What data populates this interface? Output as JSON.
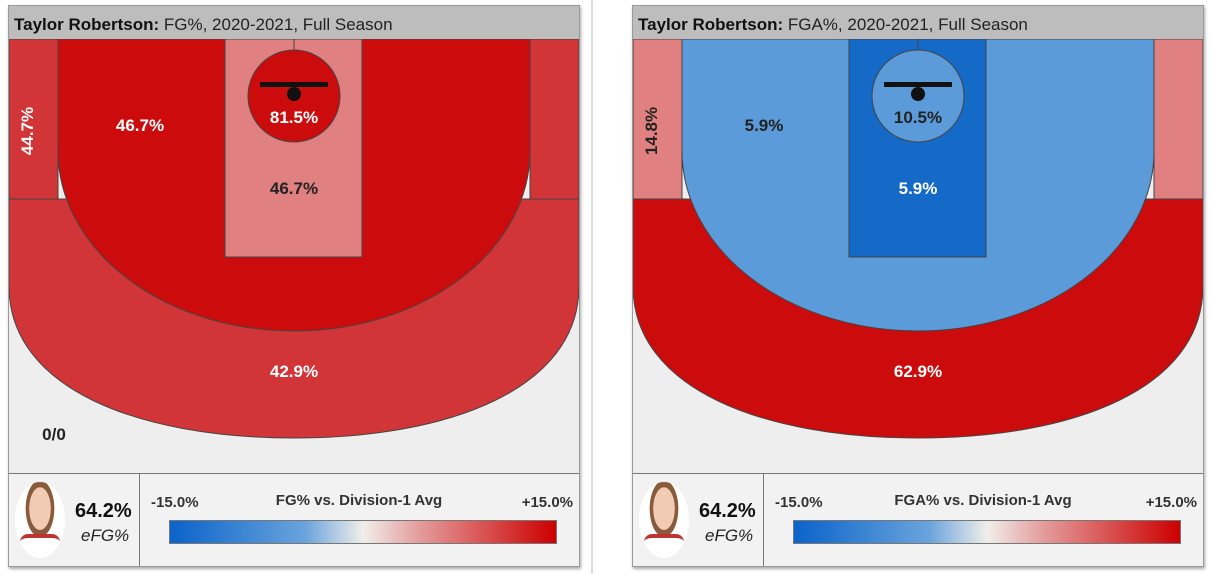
{
  "panels": [
    {
      "player": "Taylor Robertson:",
      "subtitle": " FG%, 2020-2021, Full Season",
      "zones": {
        "corner_left": "44.7%",
        "midrange": "46.7%",
        "restricted": "81.5%",
        "paint": "46.7%",
        "three_above_break": "42.9%",
        "backcourt": "0/0"
      },
      "colors": {
        "corner": "#d13538",
        "midrange": "#cc0c0c",
        "paint": "#e08080",
        "restricted": "#cc0c0c",
        "three": "#d13538",
        "backcourt": "#eeeeee"
      },
      "efg_value": "64.2%",
      "efg_label": "eFG%",
      "legend_min": "-15.0%",
      "legend_title": "FG% vs. Division-1 Avg",
      "legend_max": "+15.0%"
    },
    {
      "player": "Taylor Robertson:",
      "subtitle": " FGA%, 2020-2021, Full Season",
      "zones": {
        "corner_left": "14.8%",
        "midrange": "5.9%",
        "restricted": "10.5%",
        "paint": "5.9%",
        "three_above_break": "62.9%"
      },
      "colors": {
        "corner": "#e08080",
        "midrange": "#5b9bd9",
        "paint": "#1569c7",
        "restricted": "#5b9bd9",
        "three": "#cc0c0c",
        "backcourt": "#eeeeee"
      },
      "efg_value": "64.2%",
      "efg_label": "eFG%",
      "legend_min": "-15.0%",
      "legend_title": "FGA% vs. Division-1 Avg",
      "legend_max": "+15.0%"
    }
  ]
}
